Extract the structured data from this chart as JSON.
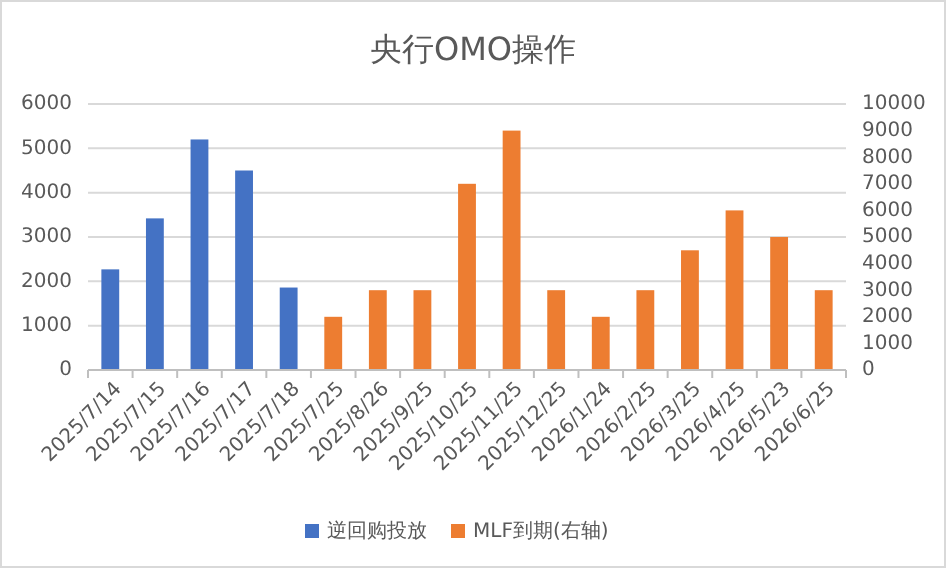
{
  "chart_data": {
    "type": "bar",
    "title": "央行OMO操作",
    "categories": [
      "2025/7/14",
      "2025/7/15",
      "2025/7/16",
      "2025/7/17",
      "2025/7/18",
      "2025/7/25",
      "2025/8/26",
      "2025/9/25",
      "2025/10/25",
      "2025/11/25",
      "2025/12/25",
      "2026/1/24",
      "2026/2/25",
      "2026/3/25",
      "2026/4/25",
      "2026/5/23",
      "2026/6/25"
    ],
    "series": [
      {
        "name": "逆回购投放",
        "color": "#4472c4",
        "values": [
          2270,
          3420,
          5200,
          4500,
          1860,
          null,
          null,
          null,
          null,
          null,
          null,
          null,
          null,
          null,
          null,
          null,
          null
        ]
      },
      {
        "name": "MLF到期(右轴)",
        "color": "#ed7d31",
        "axis": "y2",
        "values": [
          null,
          null,
          null,
          null,
          null,
          2000,
          3000,
          3000,
          7000,
          9000,
          3000,
          2000,
          3000,
          4500,
          6000,
          5000,
          3000
        ]
      }
    ],
    "ylim": [
      0,
      6000
    ],
    "yticks": [
      0,
      1000,
      2000,
      3000,
      4000,
      5000,
      6000
    ],
    "y2lim": [
      0,
      10000
    ],
    "y2ticks": [
      0,
      1000,
      2000,
      3000,
      4000,
      5000,
      6000,
      7000,
      8000,
      9000,
      10000
    ],
    "grid": "y",
    "legend": "bottom"
  }
}
